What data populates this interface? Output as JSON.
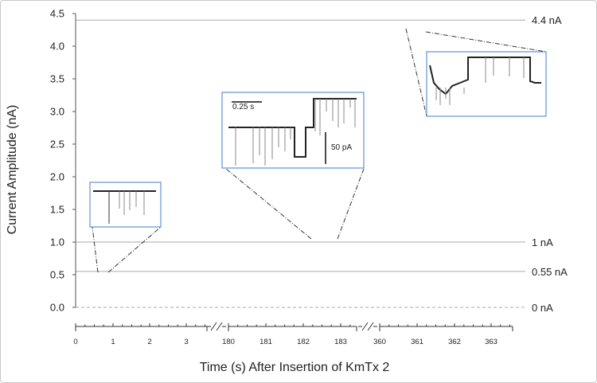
{
  "chart_data": {
    "type": "line",
    "xlabel": "Time (s) After Insertion of KmTx 2",
    "ylabel": "Current Amplitude (nA)",
    "ylim": [
      0,
      4.5
    ],
    "yticks": [
      "0.0",
      "0.5",
      "1.0",
      "1.5",
      "2.0",
      "2.5",
      "3.0",
      "3.5",
      "4.0",
      "4.5"
    ],
    "x_segments": [
      {
        "range": [
          0,
          3.5
        ],
        "ticks": [
          "0",
          "1",
          "2",
          "3"
        ]
      },
      {
        "range": [
          180,
          183.5
        ],
        "ticks": [
          "180",
          "181",
          "182",
          "183"
        ]
      },
      {
        "range": [
          360,
          363.5
        ],
        "ticks": [
          "360",
          "361",
          "362",
          "363"
        ]
      }
    ],
    "reference_lines": [
      {
        "value": 4.4,
        "label": "4.4 nA",
        "style": "solid"
      },
      {
        "value": 1.0,
        "label": "1 nA",
        "style": "solid"
      },
      {
        "value": 0.55,
        "label": "0.55 nA",
        "style": "solid"
      },
      {
        "value": 0.0,
        "label": "0 nA",
        "style": "dashed"
      }
    ],
    "series": [
      {
        "segment": 0,
        "x": [
          0,
          0.5,
          1.0,
          1.5,
          2.0,
          2.5,
          3.0,
          3.5
        ],
        "y": [
          0.53,
          0.52,
          0.51,
          0.51,
          0.48,
          0.51,
          0.52,
          0.53
        ]
      },
      {
        "segment": 1,
        "x": [
          0,
          0.5,
          1.0,
          1.5,
          2.0,
          2.5,
          3.0,
          3.5
        ],
        "y": [
          0.97,
          0.95,
          0.93,
          0.95,
          0.96,
          0.97,
          0.99,
          0.92
        ]
      },
      {
        "segment": 2,
        "x": [
          0,
          0.5,
          1.0,
          1.5,
          2.0,
          2.5,
          3.0,
          3.5
        ],
        "y": [
          4.37,
          4.36,
          4.34,
          4.37,
          4.3,
          4.28,
          4.27,
          4.28
        ]
      }
    ],
    "insets": [
      {
        "scale_time": "",
        "scale_current": ""
      },
      {
        "scale_time": "0.25 s",
        "scale_current": "50 pA"
      },
      {
        "scale_time": "",
        "scale_current": ""
      }
    ],
    "grid": false,
    "colors": {
      "trace": "#111111",
      "reference": "#aaaaaa",
      "inset_border": "#3d7cc9",
      "connector": "#333333"
    }
  }
}
